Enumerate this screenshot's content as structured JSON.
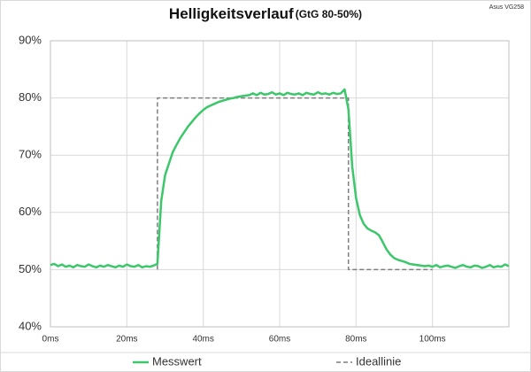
{
  "chart_data": {
    "type": "line",
    "title": "Helligkeitsverlauf",
    "subtitle": "(GtG 80-50%)",
    "annotation": "Asus VG258",
    "xlim": [
      0,
      120
    ],
    "ylim": [
      40,
      90
    ],
    "xticks": [
      {
        "value": 0,
        "label": "0ms"
      },
      {
        "value": 20,
        "label": "20ms"
      },
      {
        "value": 40,
        "label": "40ms"
      },
      {
        "value": 60,
        "label": "60ms"
      },
      {
        "value": 80,
        "label": "80ms"
      },
      {
        "value": 100,
        "label": "100ms"
      }
    ],
    "yticks": [
      {
        "value": 40,
        "label": "40%"
      },
      {
        "value": 50,
        "label": "50%"
      },
      {
        "value": 60,
        "label": "60%"
      },
      {
        "value": 70,
        "label": "70%"
      },
      {
        "value": 80,
        "label": "80%"
      },
      {
        "value": 90,
        "label": "90%"
      }
    ],
    "grid": true,
    "legend": "bottom",
    "series": [
      {
        "name": "Messwert",
        "color": "#3cc76a",
        "dash": false,
        "x": [
          0,
          1,
          2,
          3,
          4,
          5,
          6,
          7,
          8,
          9,
          10,
          11,
          12,
          13,
          14,
          15,
          16,
          17,
          18,
          19,
          20,
          21,
          22,
          23,
          24,
          25,
          26,
          27,
          28,
          29,
          30,
          31,
          32,
          33,
          34,
          35,
          36,
          37,
          38,
          39,
          40,
          41,
          42,
          43,
          44,
          45,
          46,
          47,
          48,
          49,
          50,
          51,
          52,
          53,
          54,
          55,
          56,
          57,
          58,
          59,
          60,
          61,
          62,
          63,
          64,
          65,
          66,
          67,
          68,
          69,
          70,
          71,
          72,
          73,
          74,
          75,
          76,
          77,
          78,
          79,
          80,
          81,
          82,
          83,
          84,
          85,
          86,
          87,
          88,
          89,
          90,
          91,
          92,
          93,
          94,
          95,
          96,
          97,
          98,
          99,
          100,
          101,
          102,
          103,
          104,
          105,
          106,
          107,
          108,
          109,
          110,
          111,
          112,
          113,
          114,
          115,
          116,
          117,
          118,
          119,
          120
        ],
        "values": [
          50.8,
          51.0,
          50.6,
          50.9,
          50.5,
          50.7,
          50.4,
          50.8,
          50.6,
          50.5,
          50.9,
          50.6,
          50.4,
          50.7,
          50.5,
          50.8,
          50.6,
          50.4,
          50.7,
          50.5,
          50.9,
          50.6,
          50.5,
          50.8,
          50.4,
          50.6,
          50.5,
          50.7,
          51.0,
          62.0,
          66.5,
          68.5,
          70.5,
          71.8,
          73.0,
          74.0,
          75.0,
          75.8,
          76.6,
          77.3,
          77.9,
          78.4,
          78.7,
          79.0,
          79.3,
          79.5,
          79.7,
          79.9,
          80.0,
          80.2,
          80.3,
          80.4,
          80.5,
          80.8,
          80.5,
          80.9,
          80.6,
          80.7,
          81.0,
          80.6,
          80.8,
          80.5,
          80.9,
          80.7,
          80.6,
          80.8,
          80.5,
          80.9,
          80.7,
          80.6,
          81.0,
          80.7,
          80.8,
          80.6,
          80.9,
          80.7,
          80.8,
          81.5,
          78.0,
          68.0,
          62.5,
          59.5,
          58.0,
          57.2,
          56.8,
          56.5,
          56.0,
          54.8,
          53.5,
          52.6,
          52.0,
          51.7,
          51.5,
          51.3,
          51.0,
          50.9,
          50.8,
          50.7,
          50.6,
          50.7,
          50.5,
          50.8,
          50.4,
          50.6,
          50.7,
          50.5,
          50.3,
          50.6,
          50.8,
          50.5,
          50.4,
          50.7,
          50.6,
          50.3,
          50.5,
          50.8,
          50.4,
          50.6,
          50.5,
          50.9,
          50.6
        ]
      },
      {
        "name": "Ideallinie",
        "color": "#7f7f7f",
        "dash": true,
        "x": [
          28,
          28,
          78,
          78,
          100
        ],
        "values": [
          50,
          80,
          80,
          50,
          50
        ]
      }
    ]
  }
}
